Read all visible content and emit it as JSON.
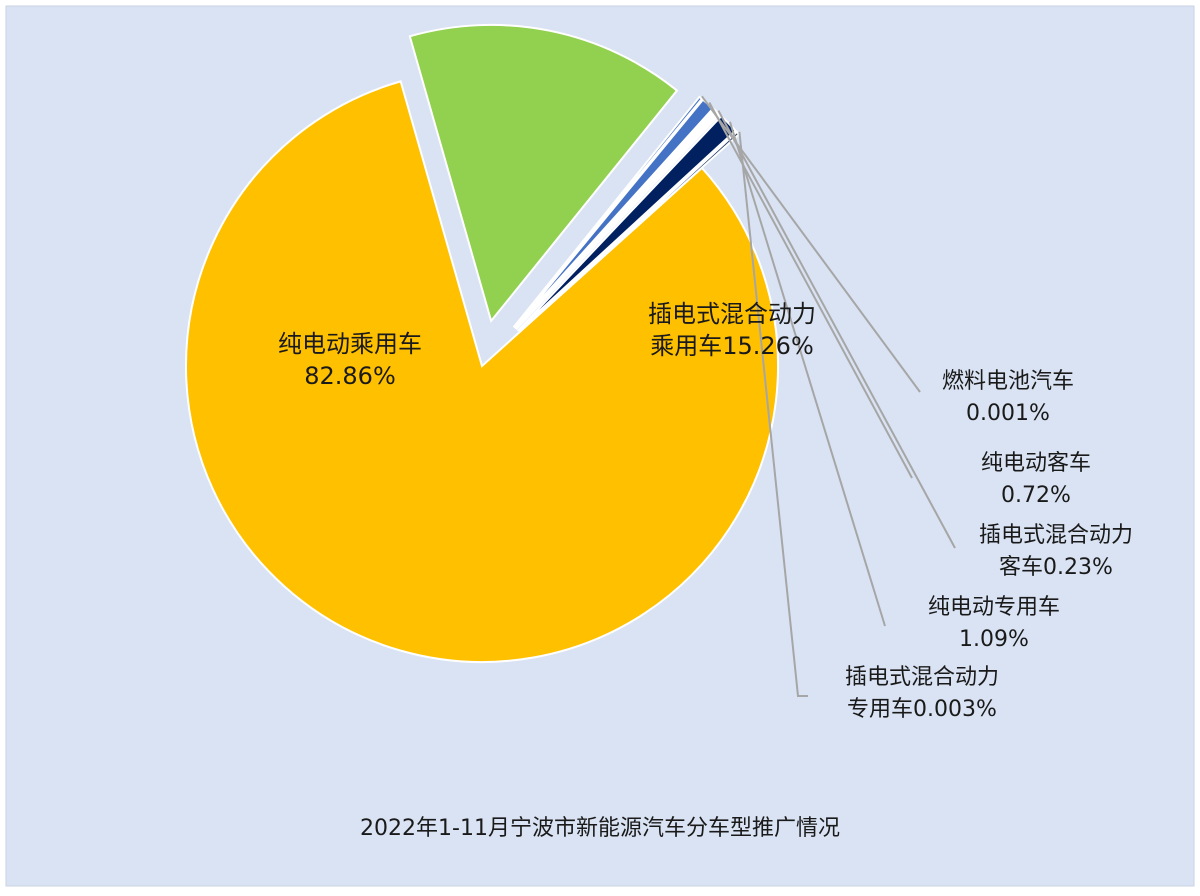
{
  "chart_data": {
    "type": "pie",
    "title": "2022年1-11月宁波市新能源汽车分车型推广情况",
    "background_color": "#dae3f3",
    "slices": [
      {
        "label_lines": [
          "纯电动乘用车",
          "82.86%"
        ],
        "value": 82.86,
        "color": "#ffc000",
        "exploded": true,
        "label_position": "inside"
      },
      {
        "label_lines": [
          "插电式混合动力",
          "乘用车15.26%"
        ],
        "value": 15.26,
        "color": "#92d050",
        "exploded": true,
        "label_position": "inside"
      },
      {
        "label_lines": [
          "燃料电池汽车",
          "0.001%"
        ],
        "value": 0.001,
        "color": "#4472c4",
        "exploded": true,
        "label_position": "outside"
      },
      {
        "label_lines": [
          "纯电动客车",
          "0.72%"
        ],
        "value": 0.72,
        "color": "#4472c4",
        "exploded": true,
        "label_position": "outside"
      },
      {
        "label_lines": [
          "插电式混合动力",
          "客车0.23%"
        ],
        "value": 0.23,
        "color": "#ffffff",
        "exploded": true,
        "label_position": "outside"
      },
      {
        "label_lines": [
          "纯电动专用车",
          "1.09%"
        ],
        "value": 1.09,
        "color": "#002060",
        "exploded": true,
        "label_position": "outside"
      },
      {
        "label_lines": [
          "插电式混合动力",
          "专用车0.003%"
        ],
        "value": 0.003,
        "color": "#1f3864",
        "exploded": true,
        "label_position": "outside"
      }
    ]
  }
}
